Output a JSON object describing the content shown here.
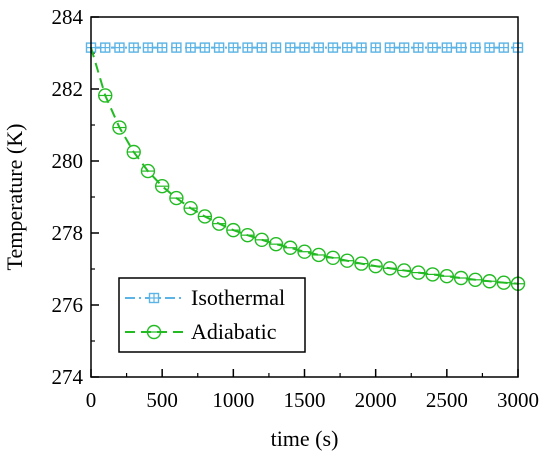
{
  "chart_data": {
    "type": "line",
    "title": "",
    "xlabel": "time (s)",
    "ylabel": "Temperature (K)",
    "xlim": [
      0,
      3000
    ],
    "ylim": [
      274,
      284
    ],
    "xticks": [
      0,
      500,
      1000,
      1500,
      2000,
      2500,
      3000
    ],
    "yticks": [
      274,
      276,
      278,
      280,
      282,
      284
    ],
    "grid": false,
    "legend_position": "bottom-left",
    "series": [
      {
        "name": "Isothermal",
        "color": "#5BB4E5",
        "marker": "square-plus",
        "line_style": "dash-dot",
        "x": [
          0,
          100,
          200,
          300,
          400,
          500,
          600,
          700,
          800,
          900,
          1000,
          1100,
          1200,
          1300,
          1400,
          1500,
          1600,
          1700,
          1800,
          1900,
          2000,
          2100,
          2200,
          2300,
          2400,
          2500,
          2600,
          2700,
          2800,
          2900,
          3000
        ],
        "y": [
          283.15,
          283.15,
          283.15,
          283.15,
          283.15,
          283.15,
          283.15,
          283.15,
          283.15,
          283.15,
          283.15,
          283.15,
          283.15,
          283.15,
          283.15,
          283.15,
          283.15,
          283.15,
          283.15,
          283.15,
          283.15,
          283.15,
          283.15,
          283.15,
          283.15,
          283.15,
          283.15,
          283.15,
          283.15,
          283.15,
          283.15
        ]
      },
      {
        "name": "Adiabatic",
        "color": "#22BB22",
        "marker": "circle-minus",
        "line_style": "dashed",
        "x": [
          0,
          100,
          200,
          300,
          400,
          500,
          600,
          700,
          800,
          900,
          1000,
          1100,
          1200,
          1300,
          1400,
          1500,
          1600,
          1700,
          1800,
          1900,
          2000,
          2100,
          2200,
          2300,
          2400,
          2500,
          2600,
          2700,
          2800,
          2900,
          3000
        ],
        "y": [
          283.15,
          281.82,
          280.93,
          280.25,
          279.72,
          279.3,
          278.97,
          278.69,
          278.46,
          278.26,
          278.08,
          277.94,
          277.81,
          277.69,
          277.59,
          277.48,
          277.39,
          277.31,
          277.23,
          277.15,
          277.08,
          277.02,
          276.96,
          276.9,
          276.85,
          276.8,
          276.75,
          276.7,
          276.66,
          276.62,
          276.59
        ]
      }
    ]
  }
}
